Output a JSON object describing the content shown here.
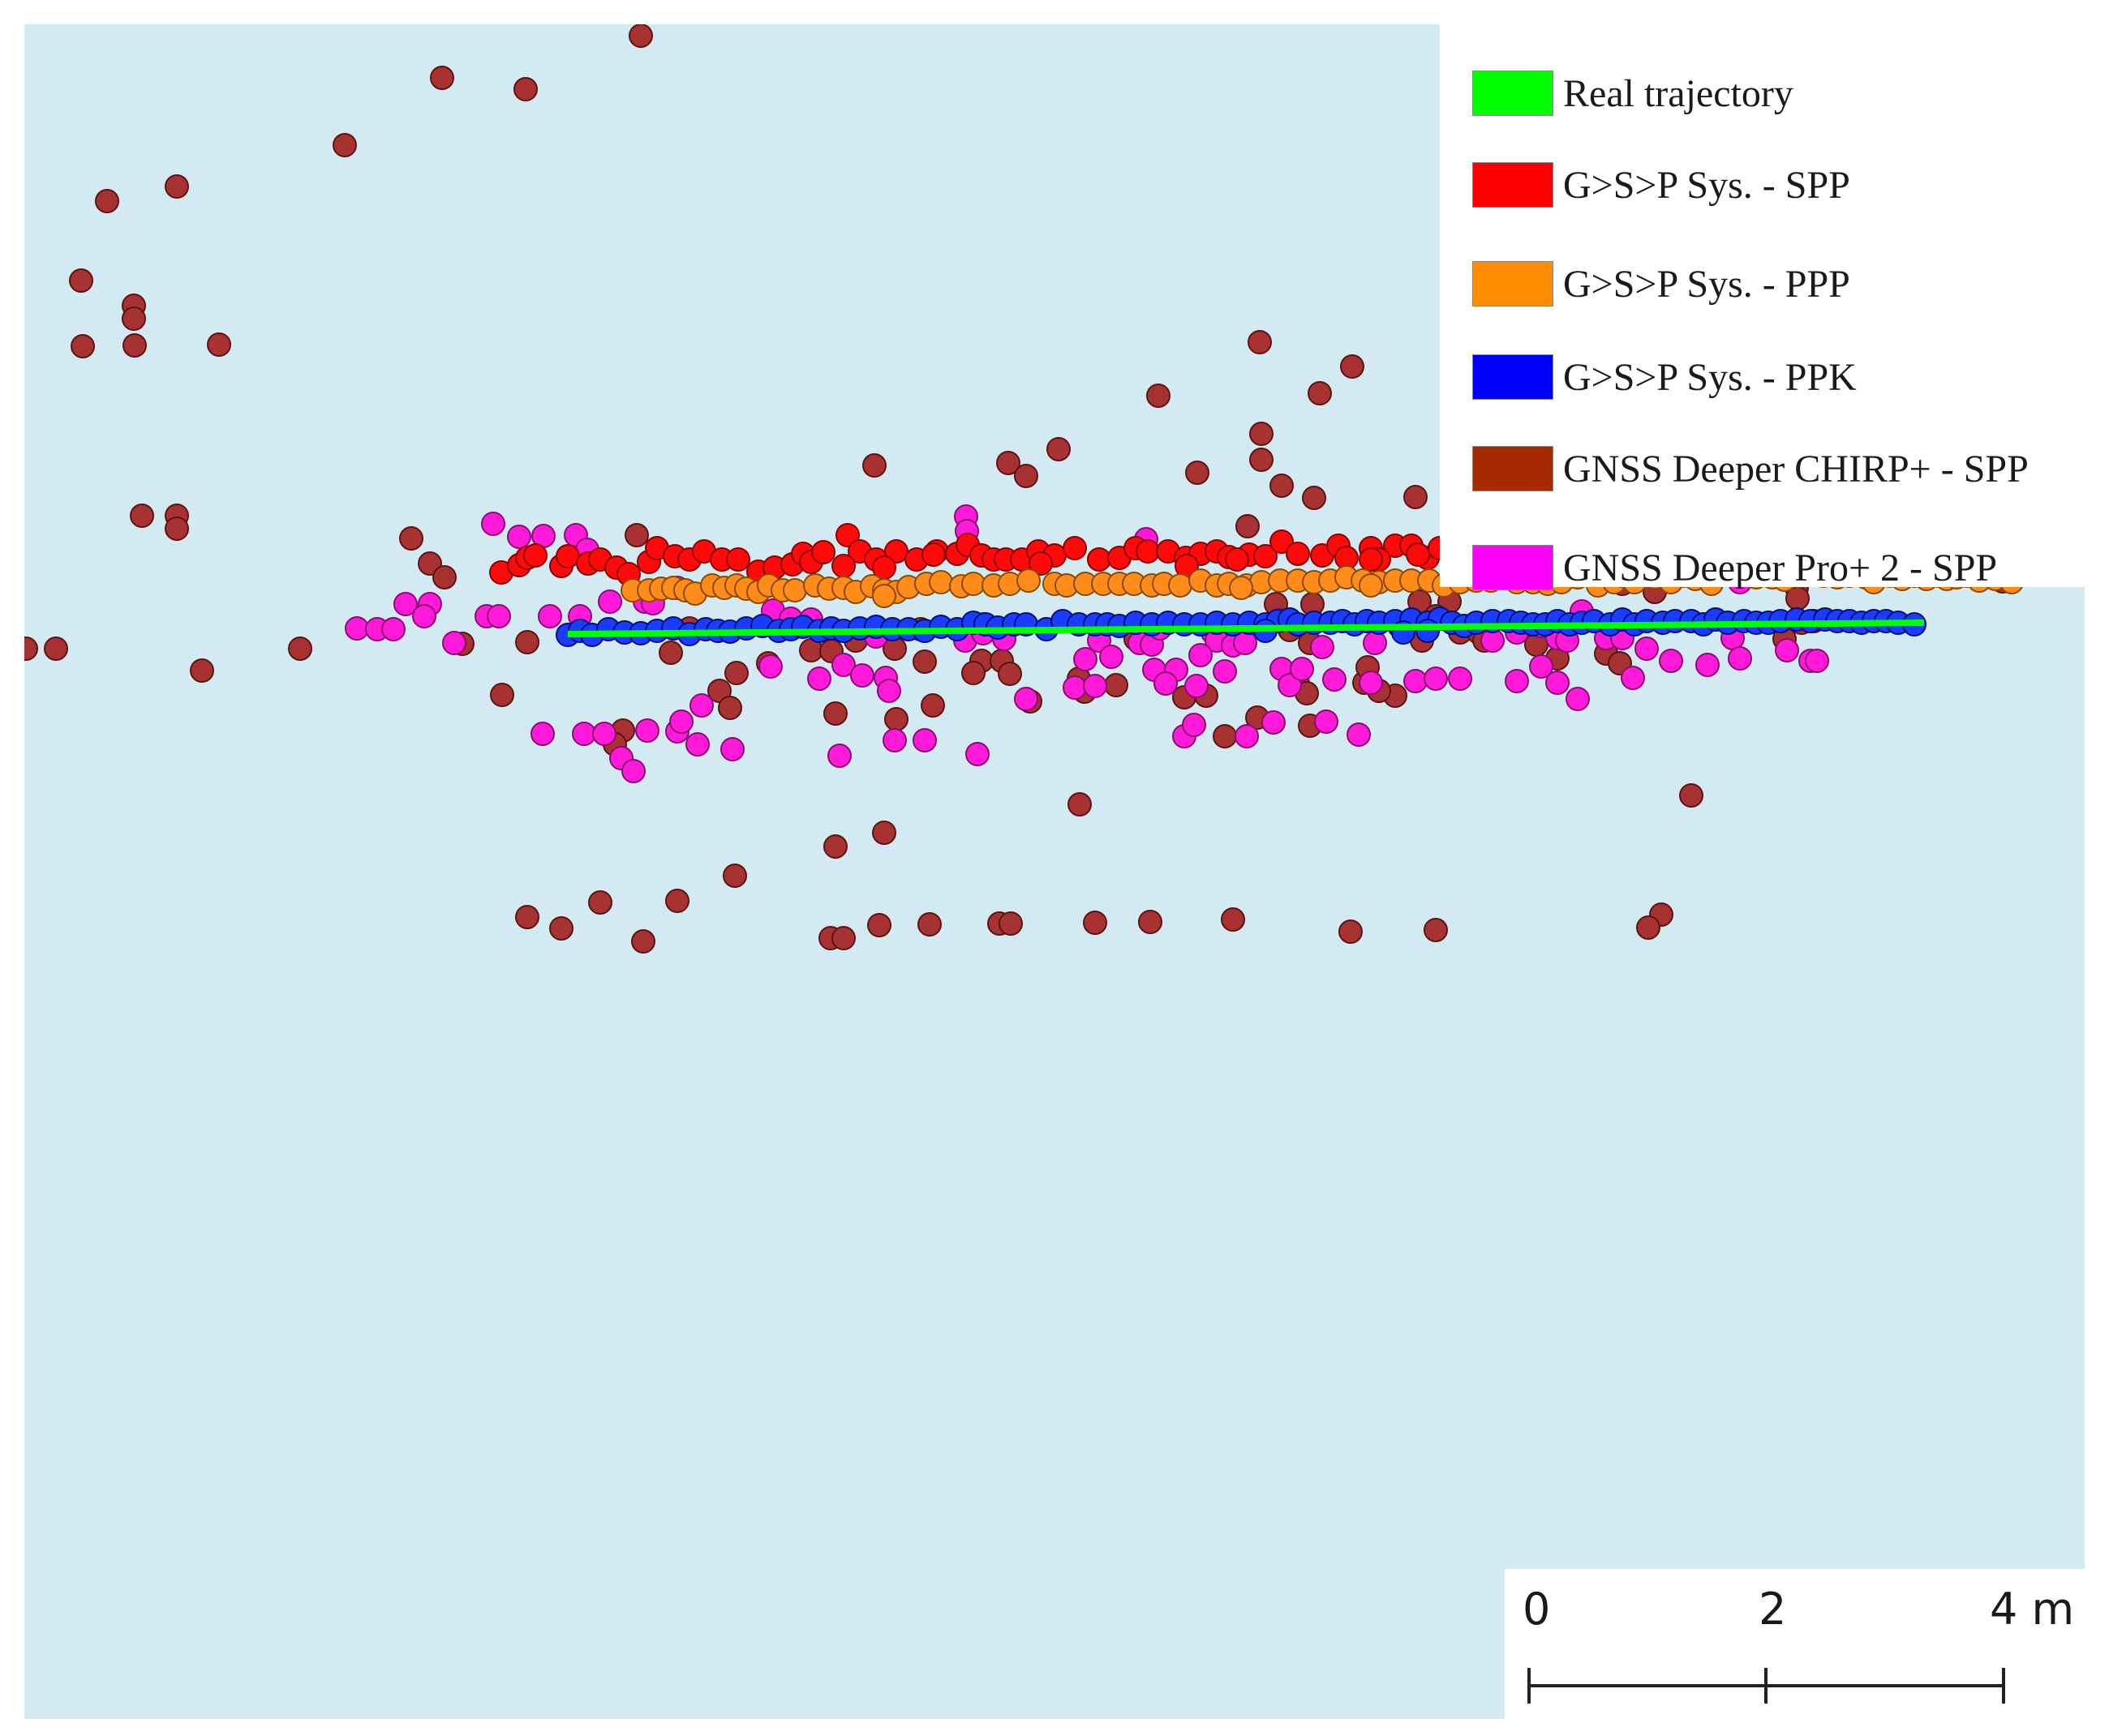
{
  "legend": {
    "items": [
      {
        "label": "Real trajectory",
        "color": "#00ff00"
      },
      {
        "label": "G>S>P Sys. - SPP",
        "color": "#ff0000"
      },
      {
        "label": "G>S>P Sys. - PPP",
        "color": "#ff8c00"
      },
      {
        "label": "G>S>P Sys. - PPK",
        "color": "#0000ff"
      },
      {
        "label": "GNSS Deeper CHIRP+ - SPP",
        "color": "#a52a00"
      },
      {
        "label": "GNSS Deeper Pro+ 2 - SPP",
        "color": "#ff00ff"
      }
    ]
  },
  "scalebar": {
    "labels": [
      "0",
      "2",
      "4 m"
    ],
    "ticks_m": [
      0,
      2,
      4
    ]
  },
  "map": {
    "background_color": "#d4eaf2",
    "units": "m",
    "trajectory": {
      "start": [
        0.0,
        0.0
      ],
      "end": [
        11.4,
        0.1
      ]
    },
    "series": {
      "chirp": {
        "fill": "#a83232",
        "stroke": "#5a1414"
      },
      "pro": {
        "fill": "#ff1ad9",
        "stroke": "#8a0a76"
      },
      "spp": {
        "fill": "#ff0a0a",
        "stroke": "#8a0000"
      },
      "ppp": {
        "fill": "#ff8c1a",
        "stroke": "#8a4a00"
      },
      "ppk": {
        "fill": "#1a3cff",
        "stroke": "#00107a"
      }
    }
  }
}
